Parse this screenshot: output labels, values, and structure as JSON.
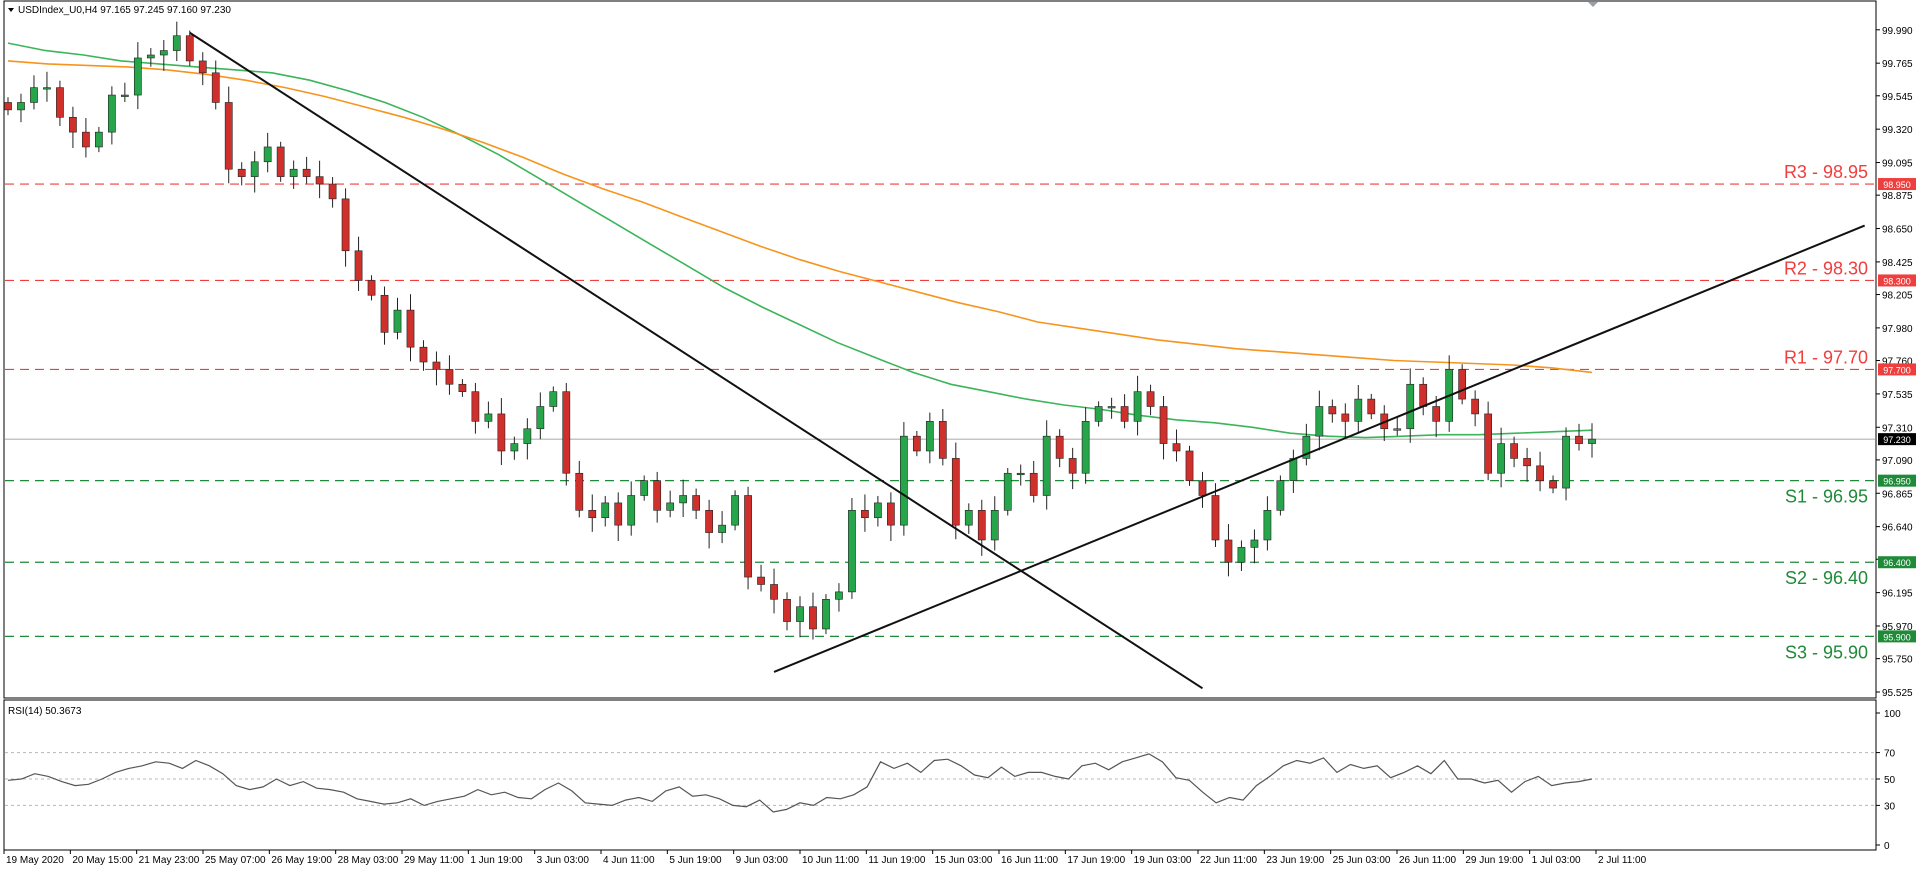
{
  "chart_header": "USDIndex_U0,H4  97.165 97.245 97.160 97.230",
  "indicator_header": "RSI(14) 50.3673",
  "colors": {
    "bull": "#26a54a",
    "bear": "#d0302c",
    "ma_fast": "#3cb55a",
    "ma_slow": "#f7941d",
    "resistance": "#ef3e3e",
    "support": "#1f8a38",
    "trendline": "#111111",
    "rsi": "#555555",
    "current_price_box": "#000000"
  },
  "chart_data": [
    {
      "type": "candlestick",
      "instrument": "USDIndex_U0",
      "timeframe": "H4",
      "ohlc_header": {
        "open": 97.165,
        "high": 97.245,
        "low": 97.16,
        "close": 97.23
      },
      "ylim": [
        95.525,
        100.11
      ],
      "y_ticks": [
        "99.990",
        "99.765",
        "99.545",
        "99.320",
        "99.095",
        "98.875",
        "98.650",
        "98.425",
        "98.205",
        "97.980",
        "97.760",
        "97.535",
        "97.310",
        "97.090",
        "96.865",
        "96.640",
        "96.420",
        "96.195",
        "95.970",
        "95.750",
        "95.525"
      ],
      "x_ticks": [
        "19 May 2020",
        "20 May 15:00",
        "21 May 23:00",
        "25 May 07:00",
        "26 May 19:00",
        "28 May 03:00",
        "29 May 11:00",
        "1 Jun 19:00",
        "3 Jun 03:00",
        "4 Jun 11:00",
        "5 Jun 19:00",
        "9 Jun 03:00",
        "10 Jun 11:00",
        "11 Jun 19:00",
        "15 Jun 03:00",
        "16 Jun 11:00",
        "17 Jun 19:00",
        "19 Jun 03:00",
        "22 Jun 11:00",
        "23 Jun 19:00",
        "25 Jun 03:00",
        "26 Jun 11:00",
        "29 Jun 19:00",
        "1 Jul 03:00",
        "2 Jul 11:00"
      ],
      "close_path": [
        99.45,
        99.5,
        99.6,
        99.6,
        99.4,
        99.3,
        99.2,
        99.3,
        99.55,
        99.55,
        99.8,
        99.82,
        99.85,
        99.95,
        99.78,
        99.7,
        99.5,
        99.05,
        99.0,
        99.1,
        99.2,
        99.0,
        99.05,
        99.0,
        98.95,
        98.85,
        98.5,
        98.3,
        98.2,
        97.95,
        98.1,
        97.85,
        97.75,
        97.7,
        97.6,
        97.55,
        97.35,
        97.4,
        97.15,
        97.2,
        97.3,
        97.45,
        97.55,
        97.0,
        96.75,
        96.7,
        96.8,
        96.65,
        96.85,
        96.95,
        96.75,
        96.8,
        96.85,
        96.75,
        96.6,
        96.65,
        96.85,
        96.3,
        96.25,
        96.15,
        96.0,
        96.1,
        95.95,
        96.15,
        96.2,
        96.75,
        96.7,
        96.8,
        96.65,
        97.25,
        97.15,
        97.35,
        97.1,
        96.65,
        96.75,
        96.55,
        96.75,
        97.0,
        97.0,
        96.85,
        97.25,
        97.1,
        97.0,
        97.35,
        97.45,
        97.45,
        97.35,
        97.55,
        97.45,
        97.2,
        97.15,
        96.95,
        96.85,
        96.55,
        96.4,
        96.5,
        96.55,
        96.75,
        96.95,
        97.1,
        97.25,
        97.45,
        97.4,
        97.35,
        97.5,
        97.4,
        97.3,
        97.3,
        97.6,
        97.45,
        97.35,
        97.7,
        97.5,
        97.4,
        97.0,
        97.2,
        97.1,
        97.05,
        96.95,
        96.9,
        97.25,
        97.2,
        97.23
      ],
      "ma_fast_path": [
        99.9,
        99.85,
        99.82,
        99.78,
        99.76,
        99.74,
        99.72,
        99.7,
        99.65,
        99.58,
        99.5,
        99.4,
        99.28,
        99.15,
        99.0,
        98.85,
        98.7,
        98.55,
        98.4,
        98.25,
        98.12,
        98.0,
        97.88,
        97.78,
        97.68,
        97.6,
        97.55,
        97.5,
        97.46,
        97.43,
        97.39,
        97.36,
        97.34,
        97.31,
        97.27,
        97.25,
        97.24,
        97.25,
        97.26,
        97.26,
        97.27,
        97.28,
        97.29
      ],
      "ma_slow_path": [
        99.78,
        99.76,
        99.75,
        99.74,
        99.72,
        99.69,
        99.65,
        99.6,
        99.54,
        99.47,
        99.4,
        99.32,
        99.23,
        99.13,
        99.02,
        98.92,
        98.83,
        98.73,
        98.63,
        98.53,
        98.44,
        98.36,
        98.29,
        98.22,
        98.15,
        98.09,
        98.02,
        97.98,
        97.94,
        97.9,
        97.87,
        97.84,
        97.82,
        97.8,
        97.78,
        97.76,
        97.75,
        97.74,
        97.73,
        97.71,
        97.68
      ],
      "levels": [
        {
          "label": "R3 - 98.95",
          "value": 98.95,
          "tag": "98.950",
          "kind": "resistance"
        },
        {
          "label": "R2 - 98.30",
          "value": 98.3,
          "tag": "98.300",
          "kind": "resistance"
        },
        {
          "label": "R1 - 97.70",
          "value": 97.7,
          "tag": "97.700",
          "kind": "resistance"
        },
        {
          "label": "S1 - 96.95",
          "value": 96.95,
          "tag": "96.950",
          "kind": "support"
        },
        {
          "label": "S2 - 96.40",
          "value": 96.4,
          "tag": "96.400",
          "kind": "support"
        },
        {
          "label": "S3 - 95.90",
          "value": 95.9,
          "tag": "95.900",
          "kind": "support"
        }
      ],
      "current_price": {
        "value": 97.23,
        "tag": "97.230"
      },
      "trendlines": [
        {
          "kind": "downtrend",
          "from_close_index": 14,
          "from_value": 99.97,
          "to_close_index": 92,
          "to_value": 95.55
        },
        {
          "kind": "uptrend",
          "from_close_index": 59,
          "from_value": 95.66,
          "to_close_index": 143,
          "to_value": 98.67
        }
      ]
    },
    {
      "type": "line",
      "name": "RSI(14)",
      "ylim": [
        0,
        100
      ],
      "y_ticks": [
        "100",
        "70",
        "50",
        "30",
        "0"
      ],
      "levels": [
        70,
        50,
        30
      ],
      "values": [
        49,
        50,
        54,
        52,
        48,
        45,
        46,
        50,
        55,
        58,
        60,
        63,
        62,
        58,
        64,
        60,
        54,
        45,
        42,
        44,
        50,
        45,
        48,
        43,
        42,
        40,
        35,
        33,
        31,
        32,
        35,
        30,
        33,
        35,
        37,
        42,
        38,
        40,
        36,
        35,
        42,
        47,
        41,
        32,
        31,
        30,
        34,
        36,
        33,
        41,
        44,
        37,
        38,
        35,
        30,
        29,
        34,
        25,
        27,
        32,
        30,
        36,
        35,
        38,
        44,
        63,
        58,
        62,
        55,
        64,
        65,
        60,
        53,
        51,
        59,
        52,
        55,
        55,
        52,
        50,
        60,
        62,
        57,
        63,
        66,
        69,
        63,
        51,
        49,
        40,
        32,
        36,
        34,
        45,
        52,
        60,
        64,
        62,
        66,
        55,
        61,
        58,
        60,
        51,
        55,
        60,
        54,
        64,
        50,
        50,
        47,
        49,
        40,
        48,
        52,
        45,
        47,
        48,
        50
      ]
    }
  ]
}
